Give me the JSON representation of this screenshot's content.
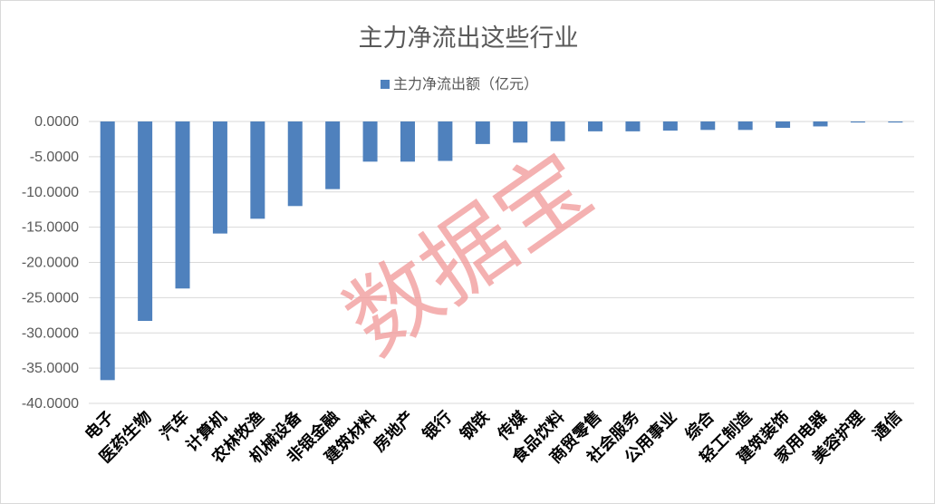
{
  "chart_data": {
    "type": "bar",
    "title": "主力净流出这些行业",
    "legend": {
      "label": "主力净流出额（亿元）",
      "position": "top"
    },
    "categories": [
      "电子",
      "医药生物",
      "汽车",
      "计算机",
      "农林牧渔",
      "机械设备",
      "非银金融",
      "建筑材料",
      "房地产",
      "银行",
      "钢铁",
      "传媒",
      "食品饮料",
      "商贸零售",
      "社会服务",
      "公用事业",
      "综合",
      "轻工制造",
      "建筑装饰",
      "家用电器",
      "美容护理",
      "通信"
    ],
    "series": [
      {
        "name": "主力净流出额（亿元）",
        "values": [
          -36.7,
          -28.3,
          -23.7,
          -15.9,
          -13.8,
          -12.0,
          -9.6,
          -5.7,
          -5.7,
          -5.6,
          -3.2,
          -3.0,
          -2.8,
          -1.4,
          -1.4,
          -1.3,
          -1.2,
          -1.2,
          -0.9,
          -0.7,
          -0.15,
          -0.15
        ]
      }
    ],
    "yticks": [
      "0.0000",
      "-5.0000",
      "-10.0000",
      "-15.0000",
      "-20.0000",
      "-25.0000",
      "-30.0000",
      "-35.0000",
      "-40.0000"
    ],
    "ylim": [
      -40,
      0
    ],
    "grid": true,
    "bar_color": "#4f81bd"
  },
  "watermark": "数据宝"
}
